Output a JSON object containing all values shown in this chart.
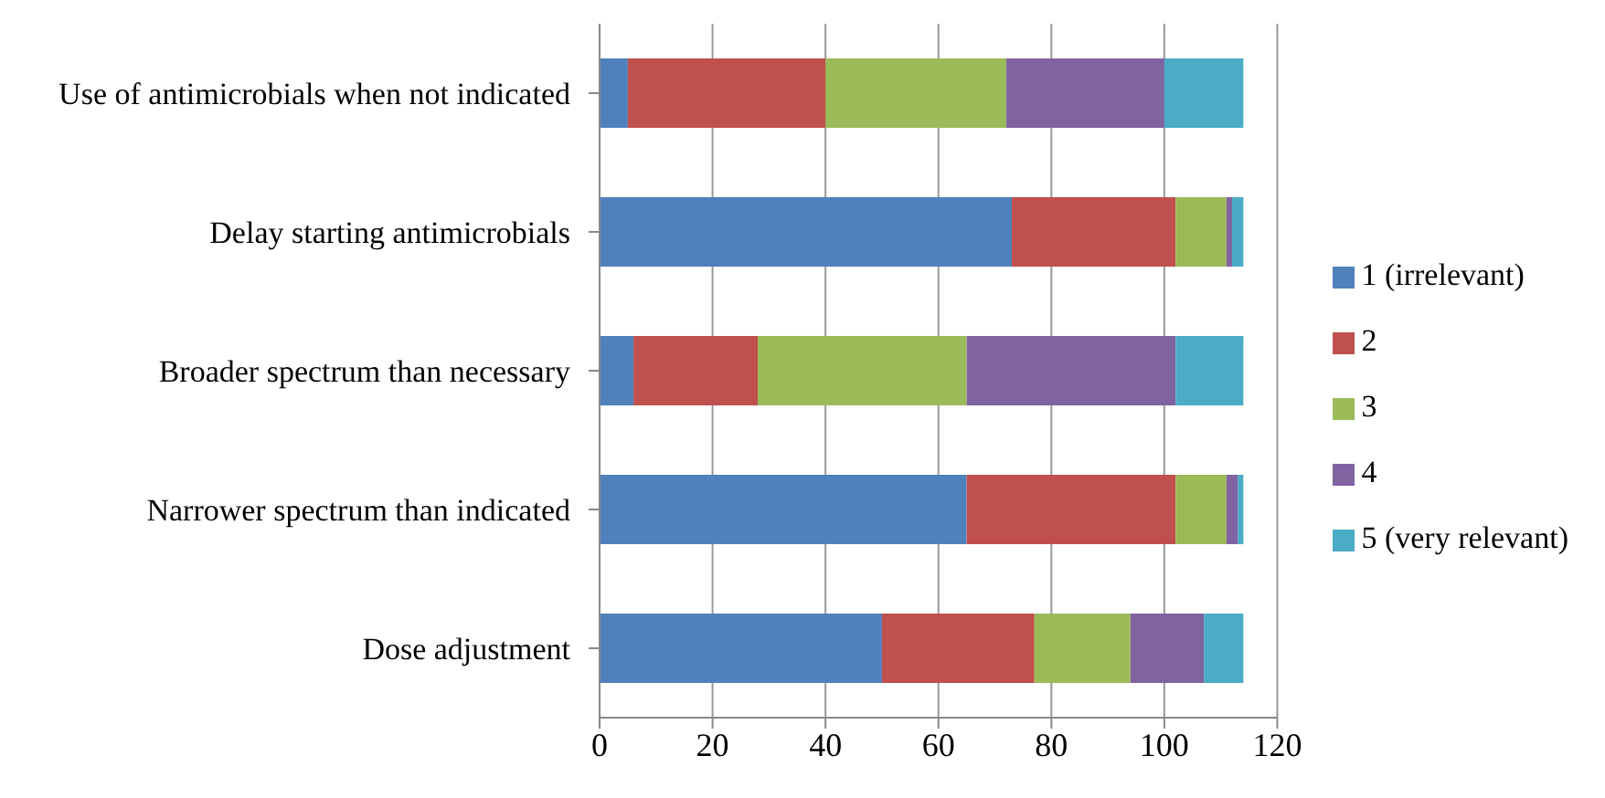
{
  "chart_data": {
    "type": "bar",
    "orientation": "horizontal",
    "stacked": true,
    "categories": [
      "Use of antimicrobials when not indicated",
      "Delay starting antimicrobials",
      "Broader spectrum than necessary",
      "Narrower spectrum than indicated",
      "Dose adjustment"
    ],
    "series": [
      {
        "name": "1 (irrelevant)",
        "color": "#4f81bd",
        "values": [
          5,
          73,
          6,
          65,
          50
        ]
      },
      {
        "name": "2",
        "color": "#c0504d",
        "values": [
          35,
          29,
          22,
          37,
          27
        ]
      },
      {
        "name": "3",
        "color": "#9bbb59",
        "values": [
          32,
          9,
          37,
          9,
          17
        ]
      },
      {
        "name": "4",
        "color": "#8064a2",
        "values": [
          28,
          1,
          37,
          2,
          13
        ]
      },
      {
        "name": "5 (very relevant)",
        "color": "#4bacc6",
        "values": [
          14,
          2,
          12,
          1,
          7
        ]
      }
    ],
    "xlim": [
      0,
      120
    ],
    "xticks": [
      0,
      20,
      40,
      60,
      80,
      100,
      120
    ],
    "grid": "x",
    "legend": "right"
  }
}
